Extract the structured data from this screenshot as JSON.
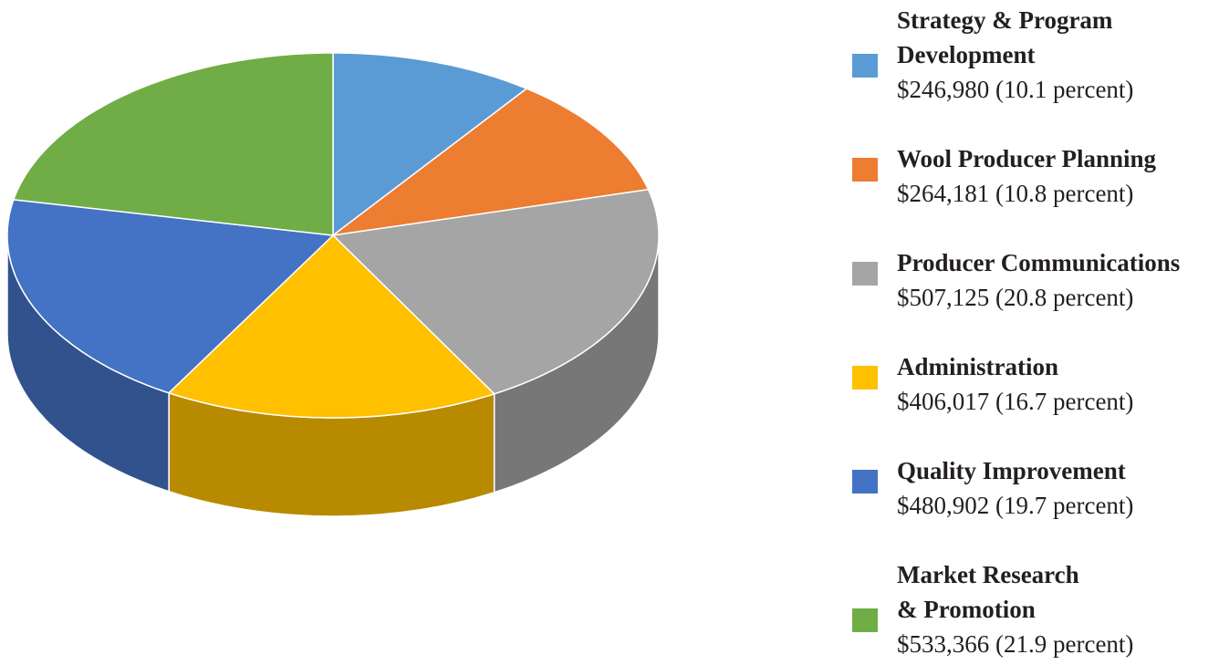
{
  "chart_data": {
    "type": "pie",
    "categories": [
      "Strategy & Program\nDevelopment",
      "Wool Producer Planning",
      "Producer Communications",
      "Administration",
      "Quality Improvement",
      "Market Research\n& Promotion"
    ],
    "values": [
      246980,
      264181,
      507125,
      406017,
      480902,
      533366
    ],
    "value_labels": [
      "$246,980 (10.1 percent)",
      "$264,181 (10.8 percent)",
      "$507,125 (20.8 percent)",
      "$406,017 (16.7 percent)",
      "$480,902 (19.7 percent)",
      "$533,366 (21.9 percent)"
    ],
    "colors": [
      "#5b9bd5",
      "#ed7d31",
      "#a5a5a5",
      "#ffc000",
      "#4472c4",
      "#70ad47"
    ],
    "legend": "right"
  }
}
